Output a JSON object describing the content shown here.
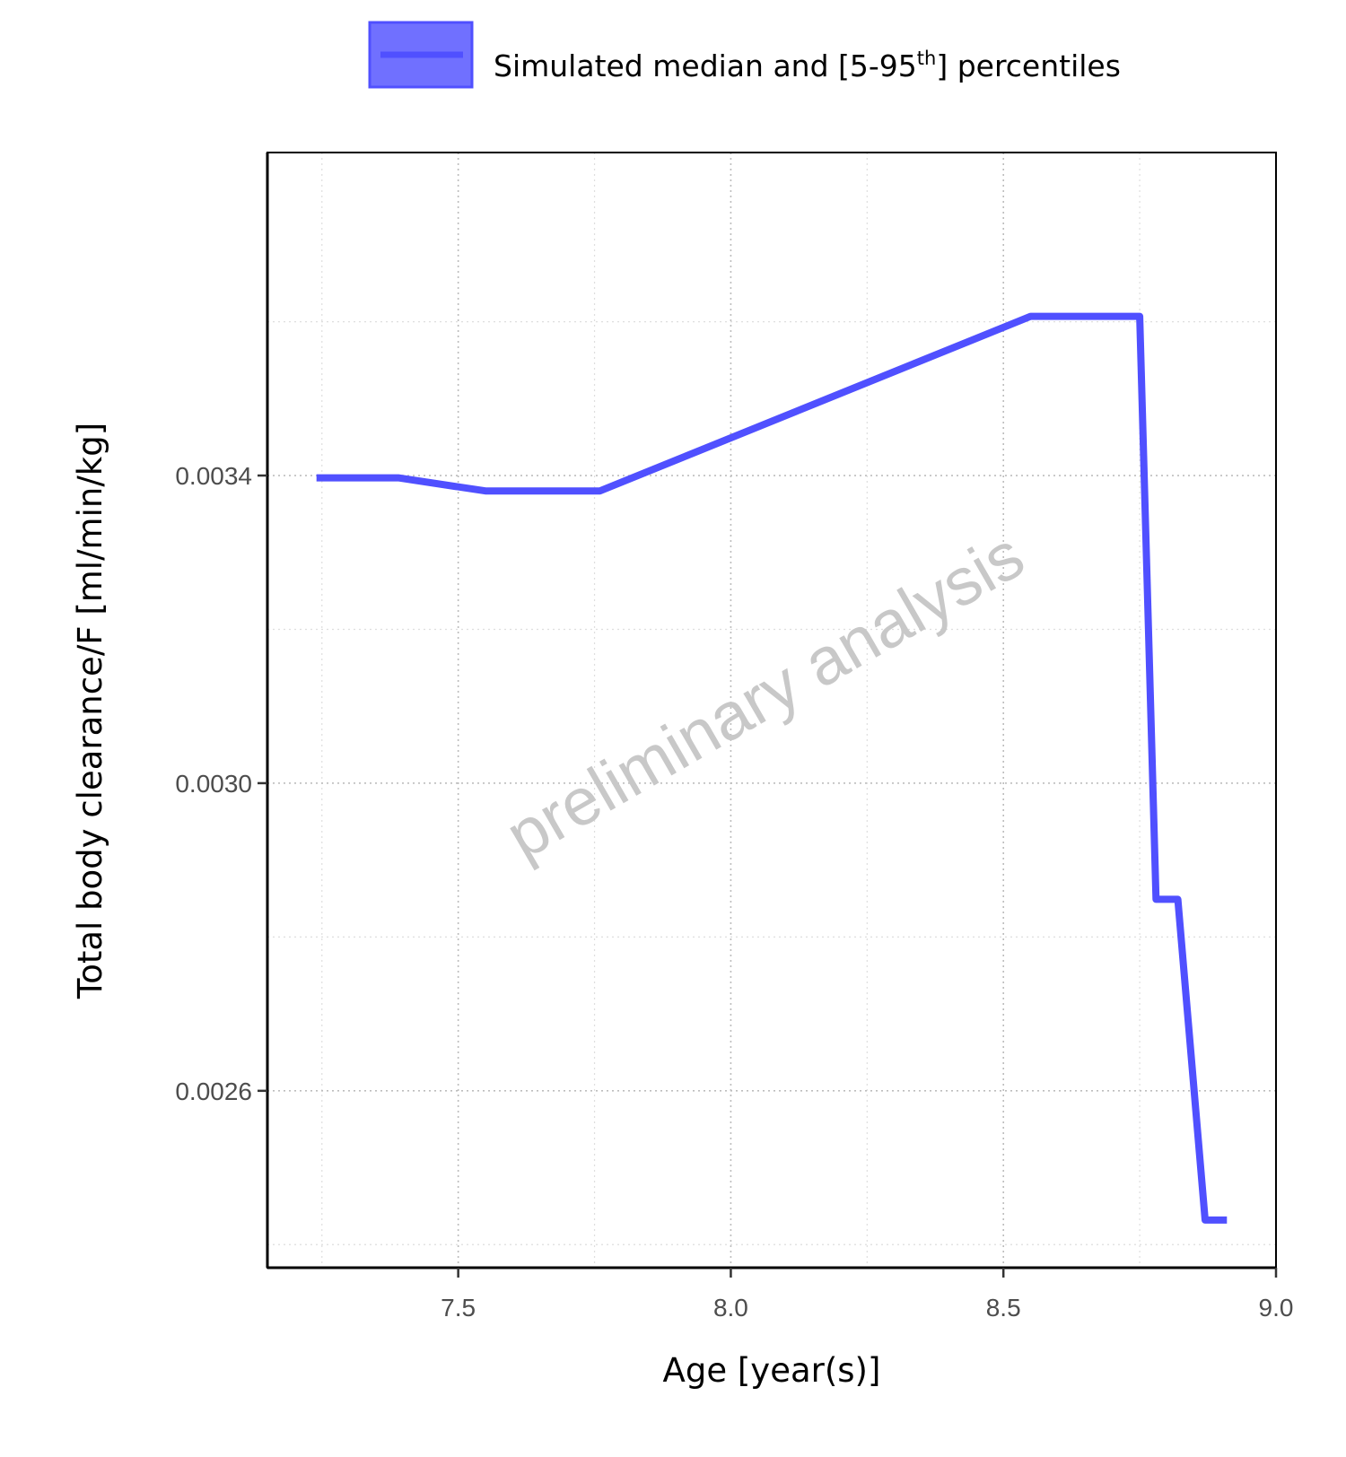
{
  "chart_data": {
    "type": "line",
    "title": "",
    "xlabel": "Age [year(s)]",
    "ylabel": "Total body clearance/F [ml/min/kg]",
    "xlim": [
      7.15,
      9.0
    ],
    "ylim": [
      0.00237,
      0.00382
    ],
    "x_ticks": [
      7.5,
      8.0,
      8.5,
      9.0
    ],
    "x_tick_labels": [
      "7.5",
      "8.0",
      "8.5",
      "9.0"
    ],
    "y_ticks": [
      0.0026,
      0.003,
      0.0034
    ],
    "y_tick_labels": [
      "0.0026",
      "0.0030",
      "0.0034"
    ],
    "x_minor_ticks": [
      7.25,
      7.75,
      8.25,
      8.75
    ],
    "y_minor_ticks": [
      0.0024,
      0.0028,
      0.0032,
      0.0036
    ],
    "grid": true,
    "legend_position": "top",
    "legend": {
      "label_prefix": "Simulated median and [5-95",
      "label_sup": "th",
      "label_suffix": "] percentiles"
    },
    "watermark": "preliminary analysis",
    "series": [
      {
        "color": "#5050ff",
        "x": [
          7.24,
          7.39,
          7.55,
          7.76,
          8.55,
          8.75,
          8.78,
          8.82,
          8.87,
          8.91
        ],
        "y": [
          0.003397,
          0.003397,
          0.00338,
          0.00338,
          0.003607,
          0.003607,
          0.002849,
          0.002849,
          0.002432,
          0.002432
        ]
      }
    ]
  }
}
